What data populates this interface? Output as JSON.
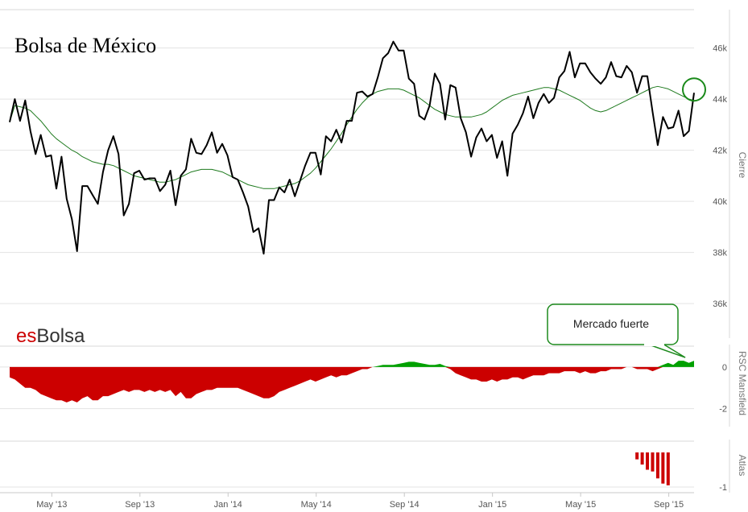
{
  "chart_data": {
    "type": "line",
    "title": "Bolsa de México",
    "brand": {
      "prefix": "es",
      "suffix": "Bolsa",
      "prefix_color": "#cc0000",
      "suffix_color": "#333333"
    },
    "x_labels": [
      "May '13",
      "Sep '13",
      "Jan '14",
      "May '14",
      "Sep '14",
      "Jan '15",
      "May '15",
      "Sep '15"
    ],
    "panels": [
      {
        "name": "cierre",
        "ylabel": "Cierre",
        "ylim": [
          35500,
          47500
        ],
        "yticks": [
          36000,
          38000,
          40000,
          42000,
          44000,
          46000
        ],
        "ytick_labels": [
          "36k",
          "38k",
          "40k",
          "42k",
          "44k",
          "46k"
        ],
        "series": [
          {
            "color": "#000000",
            "values": [
              43100,
              44000,
              43150,
              43950,
              42750,
              41850,
              42600,
              41750,
              41800,
              40500,
              41750,
              40100,
              39300,
              38050,
              40600,
              40600,
              40250,
              39900,
              41150,
              42000,
              42550,
              41850,
              39450,
              39900,
              41100,
              41200,
              40850,
              40900,
              40900,
              40400,
              40650,
              41200,
              39850,
              41000,
              41250,
              42450,
              41900,
              41850,
              42200,
              42700,
              41900,
              42250,
              41800,
              40950,
              40850,
              40350,
              39800,
              38800,
              38950,
              37950,
              40050,
              40050,
              40550,
              40350,
              40850,
              40200,
              40800,
              41400,
              41900,
              41900,
              41050,
              42550,
              42350,
              42800,
              42300,
              43150,
              43150,
              44250,
              44300,
              44100,
              44200,
              44850,
              45600,
              45800,
              46250,
              45900,
              45900,
              44800,
              44600,
              43350,
              43200,
              43750,
              45000,
              44600,
              43200,
              44550,
              44450,
              43250,
              42700,
              41750,
              42500,
              42850,
              42350,
              42600,
              41700,
              42350,
              41000,
              42650,
              43000,
              43450,
              44100,
              43250,
              43850,
              44200,
              43850,
              44050,
              44850,
              45100,
              45850,
              44850,
              45400,
              45400,
              45050,
              44800,
              44600,
              44850,
              45450,
              44900,
              44850,
              45300,
              45050,
              44250,
              44900,
              44900,
              43500,
              42200,
              43300,
              42850,
              42900,
              43550,
              42550,
              42750,
              44250
            ]
          },
          {
            "color": "#1e7a1e",
            "values": [
              43100,
              43750,
              43700,
              43650,
              43550,
              43350,
              43150,
              42900,
              42650,
              42450,
              42300,
              42150,
              42000,
              41900,
              41750,
              41650,
              41550,
              41500,
              41450,
              41450,
              41400,
              41300,
              41200,
              41100,
              41000,
              40950,
              40900,
              40850,
              40800,
              40750,
              40750,
              40800,
              40850,
              40950,
              41050,
              41150,
              41200,
              41250,
              41250,
              41250,
              41200,
              41150,
              41050,
              40950,
              40850,
              40750,
              40650,
              40600,
              40550,
              40500,
              40500,
              40500,
              40550,
              40600,
              40650,
              40700,
              40800,
              40950,
              41100,
              41300,
              41550,
              41800,
              42050,
              42350,
              42650,
              43000,
              43300,
              43600,
              43850,
              44050,
              44200,
              44300,
              44350,
              44400,
              44400,
              44400,
              44350,
              44250,
              44150,
              44050,
              43900,
              43750,
              43600,
              43500,
              43400,
              43350,
              43300,
              43300,
              43300,
              43300,
              43350,
              43400,
              43500,
              43650,
              43800,
              43950,
              44050,
              44150,
              44200,
              44250,
              44300,
              44350,
              44400,
              44450,
              44450,
              44400,
              44350,
              44250,
              44150,
              44050,
              43950,
              43800,
              43650,
              43550,
              43500,
              43550,
              43650,
              43750,
              43850,
              43950,
              44050,
              44150,
              44250,
              44350,
              44450,
              44500,
              44450,
              44400,
              44300,
              44200,
              44100,
              44000,
              43950
            ]
          }
        ]
      },
      {
        "name": "rsc",
        "ylabel": "RSC Mansfield",
        "ylim": [
          -2.4,
          1.0
        ],
        "yticks": [
          -2,
          0
        ],
        "ytick_labels": [
          "-2",
          "0"
        ],
        "series": [
          {
            "name_pos": "#00a000",
            "name_neg": "#cc0000",
            "values": [
              -0.5,
              -0.6,
              -0.8,
              -1.0,
              -1.0,
              -1.1,
              -1.3,
              -1.4,
              -1.5,
              -1.6,
              -1.6,
              -1.7,
              -1.6,
              -1.7,
              -1.5,
              -1.4,
              -1.6,
              -1.6,
              -1.4,
              -1.4,
              -1.3,
              -1.2,
              -1.1,
              -1.2,
              -1.1,
              -1.1,
              -1.2,
              -1.1,
              -1.2,
              -1.1,
              -1.2,
              -1.1,
              -1.4,
              -1.2,
              -1.5,
              -1.5,
              -1.3,
              -1.2,
              -1.1,
              -1.1,
              -1.0,
              -1.0,
              -1.0,
              -1.0,
              -1.0,
              -1.1,
              -1.2,
              -1.3,
              -1.4,
              -1.5,
              -1.5,
              -1.4,
              -1.2,
              -1.1,
              -1.0,
              -0.9,
              -0.8,
              -0.7,
              -0.6,
              -0.7,
              -0.6,
              -0.5,
              -0.4,
              -0.5,
              -0.4,
              -0.4,
              -0.3,
              -0.2,
              -0.1,
              -0.1,
              0.0,
              0.05,
              0.1,
              0.1,
              0.1,
              0.15,
              0.2,
              0.25,
              0.25,
              0.2,
              0.15,
              0.1,
              0.1,
              0.15,
              0.05,
              -0.1,
              -0.3,
              -0.4,
              -0.5,
              -0.6,
              -0.6,
              -0.7,
              -0.7,
              -0.6,
              -0.7,
              -0.6,
              -0.6,
              -0.5,
              -0.5,
              -0.6,
              -0.5,
              -0.4,
              -0.4,
              -0.4,
              -0.3,
              -0.3,
              -0.3,
              -0.2,
              -0.2,
              -0.2,
              -0.3,
              -0.2,
              -0.3,
              -0.3,
              -0.2,
              -0.2,
              -0.1,
              -0.1,
              -0.1,
              0.0,
              0.0,
              -0.1,
              -0.1,
              -0.1,
              -0.2,
              -0.1,
              0.1,
              0.2,
              0.1,
              0.3,
              0.3,
              0.2,
              0.3
            ]
          }
        ]
      },
      {
        "name": "atlas",
        "ylabel": "Atlas",
        "ylim": [
          -1.0,
          0.1
        ],
        "yticks": [
          -1
        ],
        "ytick_labels": [
          "-1"
        ],
        "series": [
          {
            "color": "#cc0000",
            "start_index": 121,
            "values": [
              -0.2,
              -0.35,
              -0.5,
              -0.55,
              -0.75,
              -0.9,
              -0.95
            ]
          }
        ]
      }
    ],
    "annotation": {
      "text": "Mercado fuerte",
      "target": "rsc",
      "index": 130
    }
  }
}
